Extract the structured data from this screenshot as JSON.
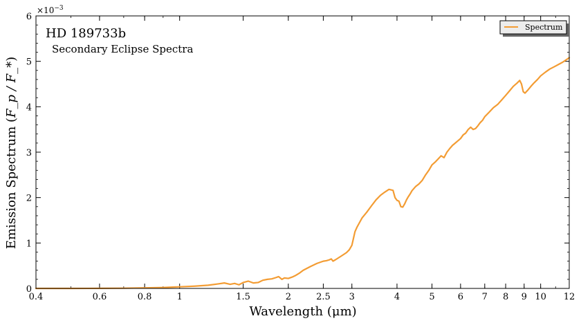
{
  "chart_data": {
    "type": "line",
    "title": "HD 189733b",
    "subtitle": "Secondary Eclipse Spectra",
    "xlabel": "Wavelength (μm)",
    "ylabel_text": "Emission Spectrum (",
    "ylabel_math": "F_p / F_*",
    "ylabel_close": ")",
    "y_multiplier": "×10",
    "y_multiplier_exp": "−3",
    "xscale": "log",
    "xlim": [
      0.4,
      12
    ],
    "ylim": [
      0,
      6
    ],
    "xticks": [
      {
        "value": 0.4,
        "label": "0.4"
      },
      {
        "value": 0.6,
        "label": "0.6"
      },
      {
        "value": 0.8,
        "label": "0.8"
      },
      {
        "value": 1,
        "label": "1"
      },
      {
        "value": 1.5,
        "label": "1.5"
      },
      {
        "value": 2,
        "label": "2"
      },
      {
        "value": 2.5,
        "label": "2.5"
      },
      {
        "value": 3,
        "label": "3"
      },
      {
        "value": 4,
        "label": "4"
      },
      {
        "value": 5,
        "label": "5"
      },
      {
        "value": 6,
        "label": "6"
      },
      {
        "value": 7,
        "label": "7"
      },
      {
        "value": 8,
        "label": "8"
      },
      {
        "value": 9,
        "label": "9"
      },
      {
        "value": 10,
        "label": "10"
      },
      {
        "value": 12,
        "label": "12"
      }
    ],
    "yticks": [
      {
        "value": 0,
        "label": "0"
      },
      {
        "value": 1,
        "label": "1"
      },
      {
        "value": 2,
        "label": "2"
      },
      {
        "value": 3,
        "label": "3"
      },
      {
        "value": 4,
        "label": "4"
      },
      {
        "value": 5,
        "label": "5"
      },
      {
        "value": 6,
        "label": "6"
      }
    ],
    "legend": "top-right",
    "grid": false,
    "series": [
      {
        "name": "Spectrum",
        "color": "#f39c33",
        "x": [
          0.4,
          0.5,
          0.6,
          0.7,
          0.8,
          0.9,
          1.0,
          1.1,
          1.2,
          1.28,
          1.33,
          1.38,
          1.42,
          1.46,
          1.5,
          1.55,
          1.6,
          1.65,
          1.7,
          1.75,
          1.8,
          1.85,
          1.88,
          1.92,
          1.95,
          2.0,
          2.05,
          2.1,
          2.15,
          2.2,
          2.3,
          2.4,
          2.5,
          2.55,
          2.6,
          2.63,
          2.66,
          2.7,
          2.75,
          2.8,
          2.85,
          2.9,
          2.95,
          3.0,
          3.03,
          3.06,
          3.1,
          3.15,
          3.2,
          3.3,
          3.4,
          3.5,
          3.6,
          3.7,
          3.8,
          3.9,
          3.95,
          4.0,
          4.05,
          4.1,
          4.15,
          4.2,
          4.25,
          4.3,
          4.35,
          4.4,
          4.5,
          4.6,
          4.7,
          4.8,
          4.9,
          5.0,
          5.1,
          5.2,
          5.3,
          5.4,
          5.5,
          5.6,
          5.7,
          5.8,
          5.9,
          6.0,
          6.1,
          6.2,
          6.3,
          6.4,
          6.5,
          6.6,
          6.7,
          6.8,
          6.9,
          7.0,
          7.2,
          7.4,
          7.6,
          7.8,
          8.0,
          8.2,
          8.4,
          8.6,
          8.75,
          8.85,
          8.95,
          9.05,
          9.2,
          9.4,
          9.6,
          9.8,
          10.0,
          10.3,
          10.6,
          10.9,
          11.2,
          11.5,
          11.8,
          12.0
        ],
        "y": [
          0.0,
          0.0,
          0.002,
          0.005,
          0.012,
          0.02,
          0.035,
          0.05,
          0.07,
          0.1,
          0.12,
          0.09,
          0.11,
          0.08,
          0.13,
          0.16,
          0.12,
          0.13,
          0.18,
          0.2,
          0.21,
          0.24,
          0.26,
          0.2,
          0.23,
          0.22,
          0.25,
          0.29,
          0.34,
          0.4,
          0.48,
          0.55,
          0.6,
          0.61,
          0.63,
          0.65,
          0.6,
          0.63,
          0.67,
          0.71,
          0.75,
          0.79,
          0.85,
          0.95,
          1.1,
          1.25,
          1.35,
          1.45,
          1.55,
          1.68,
          1.82,
          1.95,
          2.05,
          2.12,
          2.18,
          2.16,
          2.0,
          1.94,
          1.92,
          1.8,
          1.79,
          1.86,
          1.95,
          2.02,
          2.08,
          2.15,
          2.24,
          2.3,
          2.38,
          2.5,
          2.6,
          2.72,
          2.78,
          2.85,
          2.92,
          2.88,
          3.0,
          3.08,
          3.15,
          3.2,
          3.25,
          3.3,
          3.38,
          3.42,
          3.5,
          3.55,
          3.5,
          3.52,
          3.58,
          3.65,
          3.7,
          3.78,
          3.88,
          3.98,
          4.05,
          4.15,
          4.25,
          4.35,
          4.45,
          4.52,
          4.58,
          4.5,
          4.33,
          4.3,
          4.36,
          4.45,
          4.53,
          4.6,
          4.68,
          4.76,
          4.83,
          4.88,
          4.93,
          4.98,
          5.04,
          5.08
        ]
      }
    ]
  }
}
